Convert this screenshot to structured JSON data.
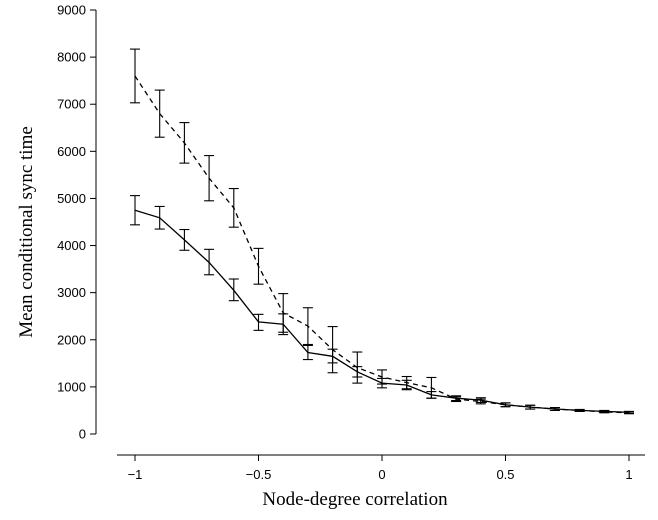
{
  "chart_data": {
    "type": "line",
    "xlabel": "Node-degree correlation",
    "ylabel": "Mean conditional sync time",
    "xlim": [
      -1,
      1
    ],
    "ylim": [
      0,
      9000
    ],
    "xticks": [
      -1,
      -0.5,
      0,
      0.5,
      1
    ],
    "xtick_labels": [
      "−1",
      "−0.5",
      "0",
      "0.5",
      "1"
    ],
    "yticks": [
      0,
      1000,
      2000,
      3000,
      4000,
      5000,
      6000,
      7000,
      8000,
      9000
    ],
    "ytick_labels": [
      "0",
      "1000",
      "2000",
      "3000",
      "4000",
      "5000",
      "6000",
      "7000",
      "8000",
      "9000"
    ],
    "grid": false,
    "x": [
      -1,
      -0.9,
      -0.8,
      -0.7,
      -0.6,
      -0.5,
      -0.4,
      -0.3,
      -0.2,
      -0.1,
      0,
      0.1,
      0.2,
      0.3,
      0.4,
      0.5,
      0.6,
      0.7,
      0.8,
      0.9,
      1
    ],
    "series": [
      {
        "style": "solid",
        "values": [
          4750,
          4590,
          4120,
          3640,
          3050,
          2380,
          2330,
          1730,
          1650,
          1320,
          1080,
          1040,
          830,
          760,
          720,
          620,
          570,
          530,
          500,
          480,
          460
        ],
        "err_low": [
          4440,
          4350,
          3900,
          3380,
          2830,
          2200,
          2110,
          1580,
          1510,
          1210,
          980,
          940,
          760,
          710,
          670,
          580,
          530,
          500,
          480,
          460,
          440
        ],
        "err_high": [
          5060,
          4830,
          4340,
          3920,
          3290,
          2540,
          2550,
          1880,
          1800,
          1430,
          1180,
          1140,
          900,
          810,
          770,
          660,
          610,
          560,
          520,
          500,
          480
        ]
      },
      {
        "style": "dashed",
        "values": [
          7600,
          6800,
          6180,
          5430,
          4800,
          3560,
          2570,
          2290,
          1790,
          1410,
          1210,
          1090,
          980,
          740,
          690,
          620,
          570,
          530,
          500,
          470,
          450
        ],
        "err_low": [
          7030,
          6300,
          5750,
          4950,
          4390,
          3180,
          2160,
          1900,
          1300,
          1080,
          1060,
          960,
          760,
          690,
          640,
          580,
          530,
          500,
          480,
          450,
          430
        ],
        "err_high": [
          8170,
          7300,
          6610,
          5910,
          5210,
          3940,
          2980,
          2680,
          2280,
          1740,
          1360,
          1220,
          1200,
          790,
          740,
          660,
          610,
          560,
          520,
          490,
          470
        ]
      }
    ]
  }
}
